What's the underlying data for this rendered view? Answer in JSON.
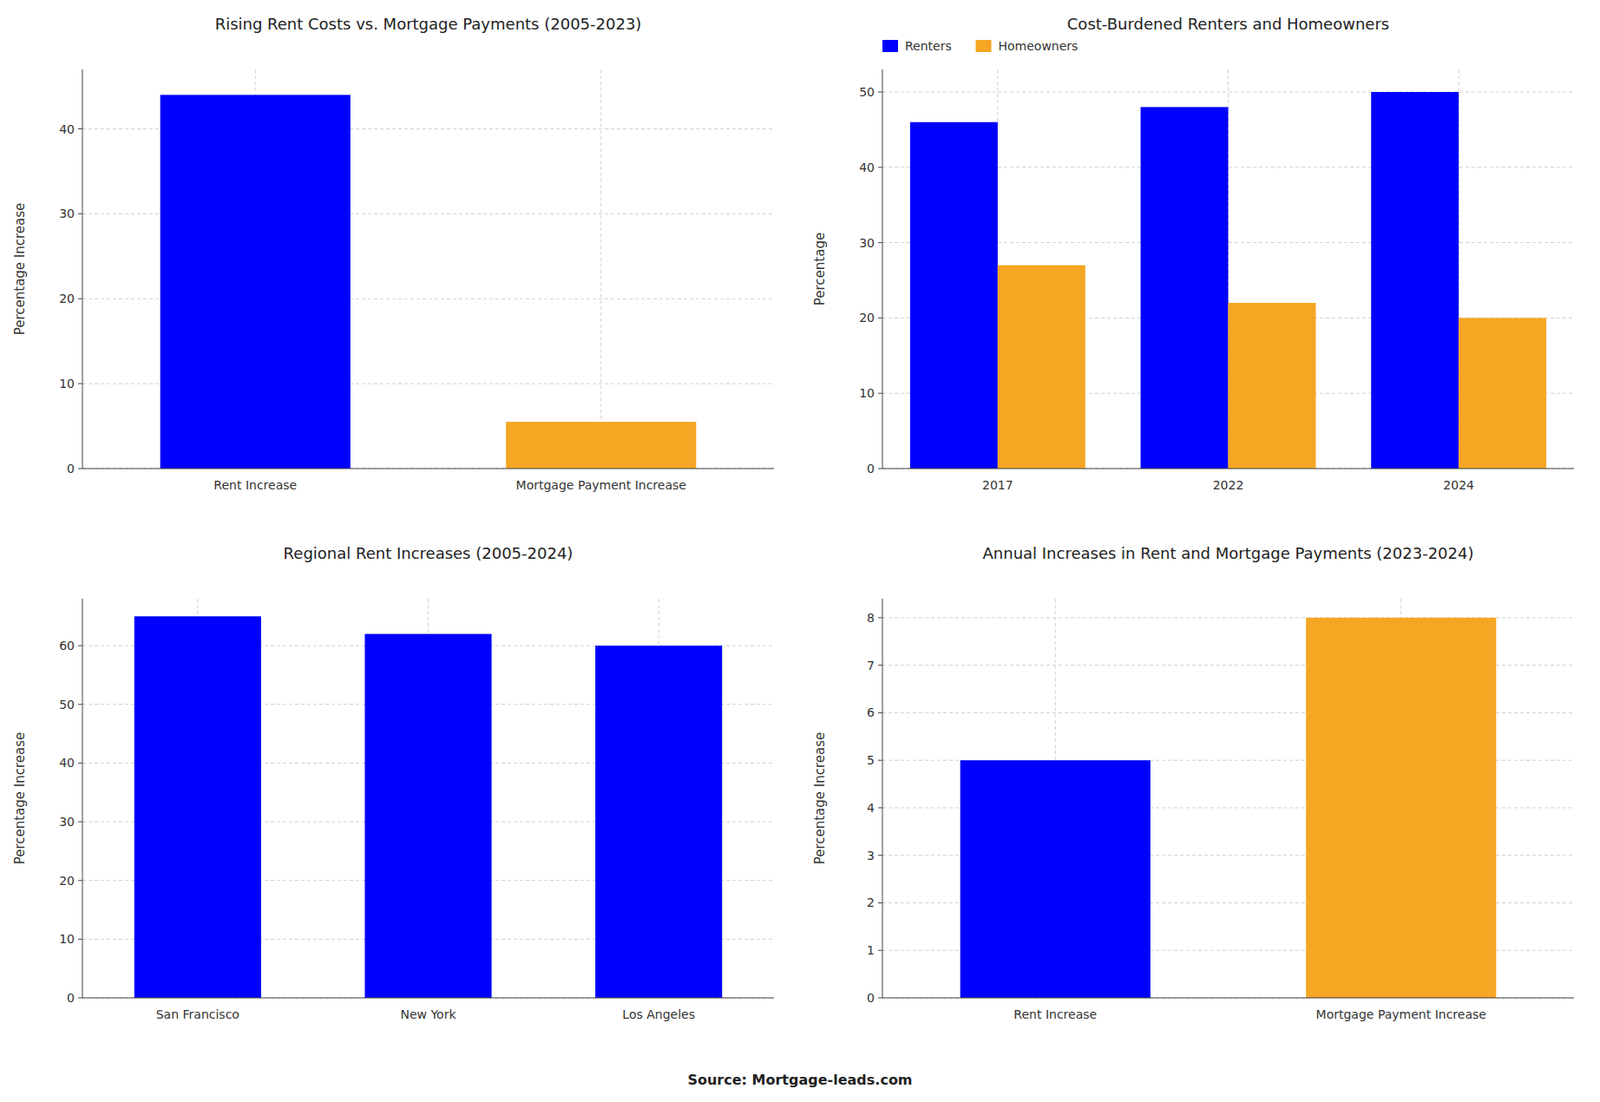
{
  "chart_data": [
    {
      "type": "bar",
      "title": "Rising Rent Costs vs. Mortgage Payments (2005-2023)",
      "categories": [
        "Rent Increase",
        "Mortgage Payment Increase"
      ],
      "values": [
        44,
        5.5
      ],
      "colors": [
        "#0000FF",
        "#F5A623"
      ],
      "ylabel": "Percentage Increase",
      "ylim": [
        0,
        47
      ],
      "yticks": [
        0,
        10,
        20,
        30,
        40
      ],
      "grid": true
    },
    {
      "type": "bar",
      "title": "Cost-Burdened Renters and Homeowners",
      "categories": [
        "2017",
        "2022",
        "2024"
      ],
      "series": [
        {
          "name": "Renters",
          "color": "#0000FF",
          "values": [
            46,
            48,
            50
          ]
        },
        {
          "name": "Homeowners",
          "color": "#F5A623",
          "values": [
            27,
            22,
            20
          ]
        }
      ],
      "ylabel": "Percentage",
      "ylim": [
        0,
        53
      ],
      "yticks": [
        0,
        10,
        20,
        30,
        40,
        50
      ],
      "grid": true,
      "legend": "upper left"
    },
    {
      "type": "bar",
      "title": "Regional Rent Increases (2005-2024)",
      "categories": [
        "San Francisco",
        "New York",
        "Los Angeles"
      ],
      "values": [
        65,
        62,
        60
      ],
      "colors": [
        "#0000FF",
        "#0000FF",
        "#0000FF"
      ],
      "ylabel": "Percentage Increase",
      "ylim": [
        0,
        68
      ],
      "yticks": [
        0,
        10,
        20,
        30,
        40,
        50,
        60
      ],
      "grid": true
    },
    {
      "type": "bar",
      "title": "Annual Increases in Rent and Mortgage Payments (2023-2024)",
      "categories": [
        "Rent Increase",
        "Mortgage Payment Increase"
      ],
      "values": [
        5,
        8
      ],
      "colors": [
        "#0000FF",
        "#F5A623"
      ],
      "ylabel": "Percentage Increase",
      "ylim": [
        0,
        8.4
      ],
      "yticks": [
        0,
        1,
        2,
        3,
        4,
        5,
        6,
        7,
        8
      ],
      "grid": true
    }
  ],
  "annotations": [
    "Source: Mortgage-leads.com"
  ]
}
